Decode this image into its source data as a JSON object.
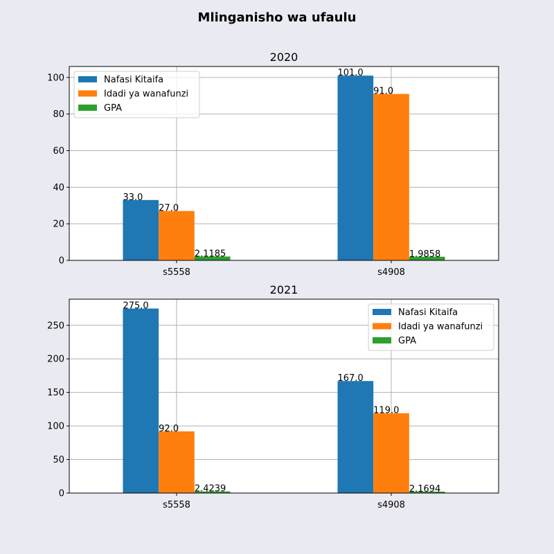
{
  "suptitle": "Mlinganisho wa ufaulu",
  "colors": {
    "background": "#eaeaf2",
    "series": [
      "#1f77b4",
      "#ff7f0e",
      "#2ca02c"
    ]
  },
  "chart_data": [
    {
      "type": "bar",
      "title": "2020",
      "categories": [
        "s5558",
        "s4908"
      ],
      "series": [
        {
          "name": "Nafasi Kitaifa",
          "values": [
            33.0,
            101.0
          ],
          "labels": [
            "33.0",
            "101.0"
          ]
        },
        {
          "name": "Idadi ya wanafunzi",
          "values": [
            27.0,
            91.0
          ],
          "labels": [
            "27.0",
            "91.0"
          ]
        },
        {
          "name": "GPA",
          "values": [
            2.1185,
            1.9858
          ],
          "labels": [
            "2.1185",
            "1.9858"
          ]
        }
      ],
      "ylim": [
        0,
        106
      ],
      "yticks": [
        0,
        20,
        40,
        60,
        80,
        100
      ],
      "grid": true,
      "legend": "upper-left",
      "xlabel": "",
      "ylabel": ""
    },
    {
      "type": "bar",
      "title": "2021",
      "categories": [
        "s5558",
        "s4908"
      ],
      "series": [
        {
          "name": "Nafasi Kitaifa",
          "values": [
            275.0,
            167.0
          ],
          "labels": [
            "275.0",
            "167.0"
          ]
        },
        {
          "name": "Idadi ya wanafunzi",
          "values": [
            92.0,
            119.0
          ],
          "labels": [
            "92.0",
            "119.0"
          ]
        },
        {
          "name": "GPA",
          "values": [
            2.4239,
            2.1694
          ],
          "labels": [
            "2.4239",
            "2.1694"
          ]
        }
      ],
      "ylim": [
        0,
        289
      ],
      "yticks": [
        0,
        50,
        100,
        150,
        200,
        250
      ],
      "grid": true,
      "legend": "upper-right",
      "xlabel": "",
      "ylabel": ""
    }
  ]
}
